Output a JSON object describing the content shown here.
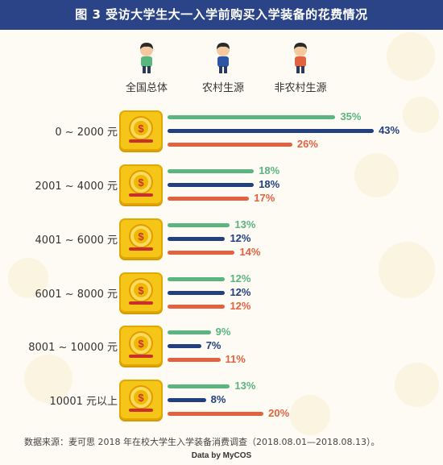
{
  "header": {
    "title": "图 3 受访大学生大一入学前购买入学装备的花费情况"
  },
  "legend": [
    {
      "label": "全国总体",
      "color": "#5bb57f",
      "shirt": "#5bb57f"
    },
    {
      "label": "农村生源",
      "color": "#22407f",
      "shirt": "#2d55a6"
    },
    {
      "label": "非农村生源",
      "color": "#e2623f",
      "shirt": "#e2623f"
    }
  ],
  "chart_data": {
    "type": "bar",
    "orientation": "horizontal",
    "title": "图 3 受访大学生大一入学前购买入学装备的花费情况",
    "categories": [
      "0 ~ 2000 元",
      "2001 ~ 4000 元",
      "4001 ~ 6000 元",
      "6001 ~ 8000 元",
      "8001 ~ 10000 元",
      "10001 元以上"
    ],
    "series": [
      {
        "name": "全国总体",
        "color": "#5bb57f",
        "values": [
          35,
          18,
          13,
          12,
          9,
          13
        ],
        "labels": [
          "35%",
          "18%",
          "13%",
          "12%",
          "9%",
          "13%"
        ]
      },
      {
        "name": "农村生源",
        "color": "#22407f",
        "values": [
          43,
          18,
          12,
          12,
          7,
          8
        ],
        "labels": [
          "43%",
          "18%",
          "12%",
          "12%",
          "7%",
          "8%"
        ]
      },
      {
        "name": "非农村生源",
        "color": "#e2623f",
        "values": [
          26,
          17,
          14,
          12,
          11,
          20
        ],
        "labels": [
          "26%",
          "17%",
          "14%",
          "12%",
          "11%",
          "20%"
        ]
      }
    ],
    "xlim": [
      0,
      45
    ],
    "legend_position": "top",
    "grid": false
  },
  "footer": {
    "source": "数据来源：麦可思 2018 年在校大学生入学装备消费调查（2018.08.01—2018.08.13）。",
    "brand": "Data by MyCOS"
  }
}
